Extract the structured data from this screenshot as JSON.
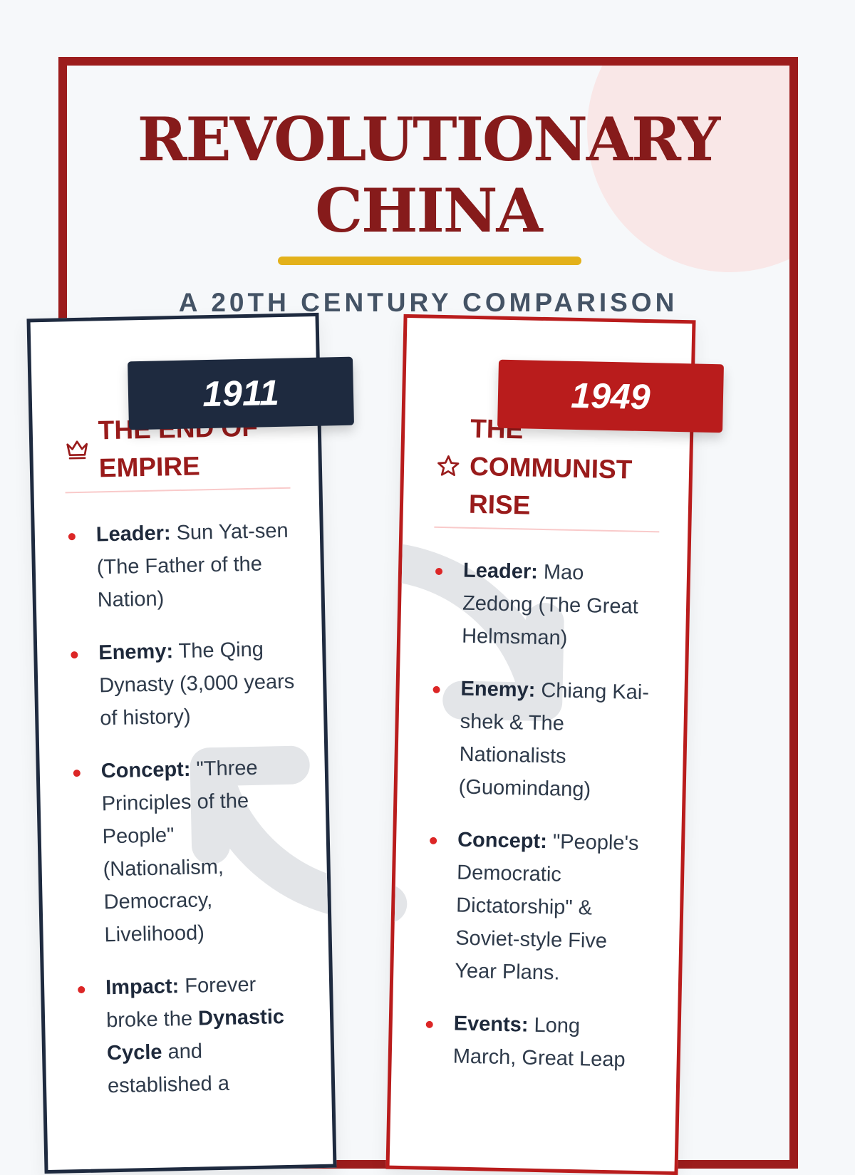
{
  "title": {
    "line1": "REVOLUTIONARY",
    "line2": "CHINA"
  },
  "subtitle": "A 20TH CENTURY COMPARISON",
  "colors": {
    "border": "#9c1c1c",
    "title": "#861b1b",
    "accent": "#e3b11a",
    "navy": "#1e2a3f",
    "red": "#b91c1c"
  },
  "cards": [
    {
      "year": "1911",
      "icon": "crown-icon",
      "heading": "THE END OF EMPIRE",
      "items": [
        {
          "label": "Leader:",
          "text": "Sun Yat-sen (The Father of the Nation)"
        },
        {
          "label": "Enemy:",
          "text": "The Qing Dynasty (3,000 years of history)"
        },
        {
          "label": "Concept:",
          "text": "\"Three Principles of the People\" (Nationalism, Democracy, Livelihood)"
        },
        {
          "label": "Impact:",
          "text_a": "Forever broke the",
          "bold": "Dynastic Cycle",
          "text_b": "and established a"
        }
      ]
    },
    {
      "year": "1949",
      "icon": "star-icon",
      "heading": "THE COMMUNIST RISE",
      "items": [
        {
          "label": "Leader:",
          "text": "Mao Zedong (The Great Helmsman)"
        },
        {
          "label": "Enemy:",
          "text": "Chiang Kai-shek & The Nationalists (Guomindang)"
        },
        {
          "label": "Concept:",
          "text": "\"People's Democratic Dictatorship\" & Soviet-style Five Year Plans."
        },
        {
          "label": "Events:",
          "text": "Long March, Great Leap"
        }
      ]
    }
  ]
}
